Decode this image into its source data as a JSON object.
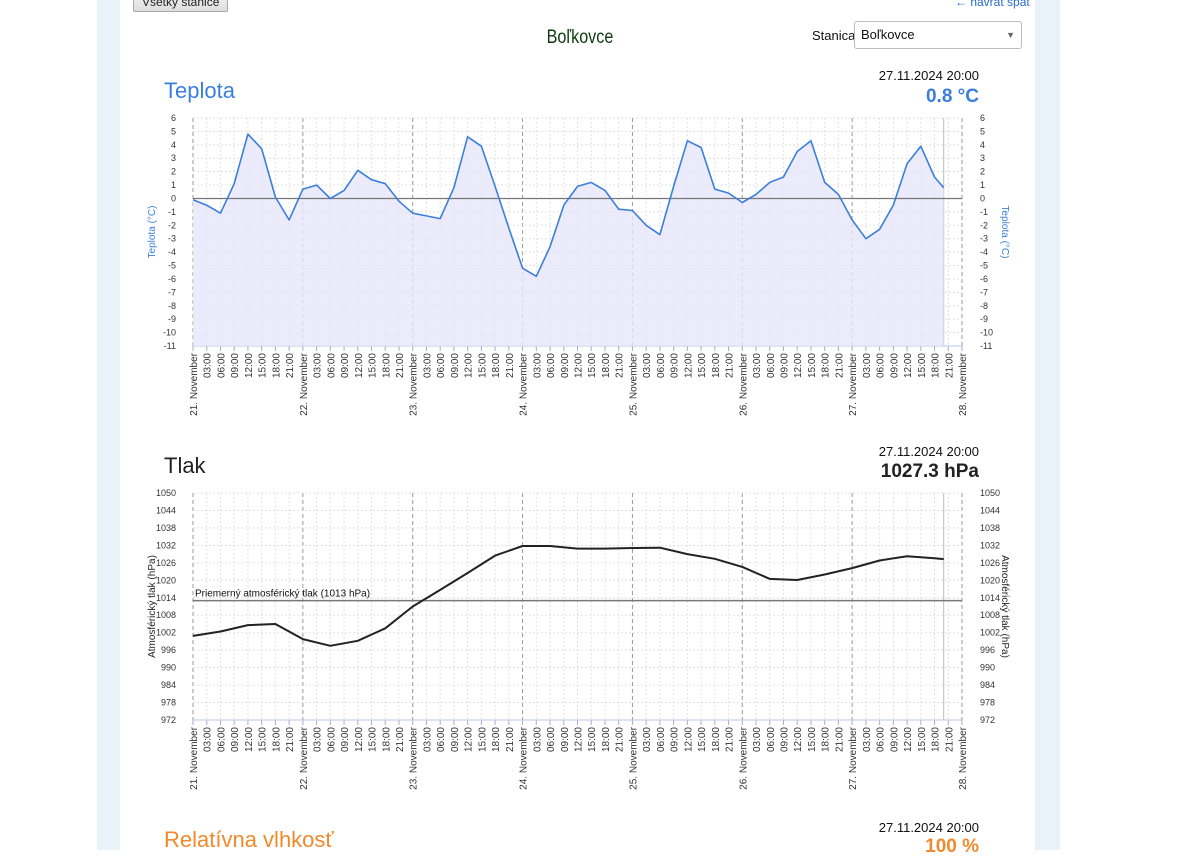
{
  "nav": {
    "all_stations": "Všetky stanice",
    "back": "← návrat späť"
  },
  "station": {
    "title": "Boľkovce",
    "label": "Stanica:",
    "selected": "Boľkovce"
  },
  "colors": {
    "temp": "#3b7fdc",
    "pressure": "#222222",
    "humidity": "#f08a2c",
    "temp_fill": "#e6e6fa"
  },
  "temperature": {
    "title": "Teplota",
    "date": "27.11.2024 20:00",
    "value": "0.8 °C",
    "axis_label": "Teplota (°C)"
  },
  "pressure": {
    "title": "Tlak",
    "date": "27.11.2024 20:00",
    "value": "1027.3 hPa",
    "axis_label": "Atmosférický tlak (hPa)",
    "reference_label": "Priemerný atmosférický tlak (1013 hPa)",
    "reference_value": 1013
  },
  "humidity": {
    "title": "Relatívna vlhkosť",
    "date": "27.11.2024 20:00",
    "value": "100 %"
  },
  "x_axis": {
    "day_labels": [
      "21. November",
      "22. November",
      "23. November",
      "24. November",
      "25. November",
      "26. November",
      "27. November",
      "28. November"
    ],
    "hour_labels": [
      "03:00",
      "06:00",
      "09:00",
      "12:00",
      "15:00",
      "18:00",
      "21:00"
    ]
  },
  "chart_data": [
    {
      "type": "area",
      "ylabel": "Teplota (°C)",
      "ylim": [
        -11,
        6
      ],
      "yticks_step": 1,
      "xlim": [
        "2024-11-21T00:00",
        "2024-11-28T00:00"
      ],
      "grid": true,
      "x": [
        "2024-11-21T00:00",
        "2024-11-21T03:00",
        "2024-11-21T06:00",
        "2024-11-21T09:00",
        "2024-11-21T12:00",
        "2024-11-21T15:00",
        "2024-11-21T18:00",
        "2024-11-21T21:00",
        "2024-11-22T00:00",
        "2024-11-22T03:00",
        "2024-11-22T06:00",
        "2024-11-22T09:00",
        "2024-11-22T12:00",
        "2024-11-22T15:00",
        "2024-11-22T18:00",
        "2024-11-22T21:00",
        "2024-11-23T00:00",
        "2024-11-23T03:00",
        "2024-11-23T06:00",
        "2024-11-23T09:00",
        "2024-11-23T12:00",
        "2024-11-23T15:00",
        "2024-11-23T18:00",
        "2024-11-23T21:00",
        "2024-11-24T00:00",
        "2024-11-24T03:00",
        "2024-11-24T06:00",
        "2024-11-24T09:00",
        "2024-11-24T12:00",
        "2024-11-24T15:00",
        "2024-11-24T18:00",
        "2024-11-24T21:00",
        "2024-11-25T00:00",
        "2024-11-25T03:00",
        "2024-11-25T06:00",
        "2024-11-25T09:00",
        "2024-11-25T12:00",
        "2024-11-25T15:00",
        "2024-11-25T18:00",
        "2024-11-25T21:00",
        "2024-11-26T00:00",
        "2024-11-26T03:00",
        "2024-11-26T06:00",
        "2024-11-26T09:00",
        "2024-11-26T12:00",
        "2024-11-26T15:00",
        "2024-11-26T18:00",
        "2024-11-26T21:00",
        "2024-11-27T00:00",
        "2024-11-27T03:00",
        "2024-11-27T06:00",
        "2024-11-27T09:00",
        "2024-11-27T12:00",
        "2024-11-27T15:00",
        "2024-11-27T18:00",
        "2024-11-27T20:00"
      ],
      "y": [
        -0.1,
        -0.5,
        -1.1,
        1.1,
        4.8,
        3.7,
        0.1,
        -1.6,
        0.7,
        1.0,
        0.0,
        0.6,
        2.1,
        1.4,
        1.1,
        -0.2,
        -1.1,
        -1.3,
        -1.5,
        0.8,
        4.6,
        3.9,
        0.9,
        -2.2,
        -5.2,
        -5.8,
        -3.6,
        -0.5,
        0.9,
        1.2,
        0.6,
        -0.8,
        -0.9,
        -2.0,
        -2.7,
        0.9,
        4.3,
        3.8,
        0.7,
        0.4,
        -0.3,
        0.3,
        1.2,
        1.6,
        3.5,
        4.3,
        1.2,
        0.3,
        -1.6,
        -3.0,
        -2.3,
        -0.5,
        2.6,
        3.9,
        1.6,
        0.8
      ]
    },
    {
      "type": "line",
      "ylabel": "Atmosférický tlak (hPa)",
      "ylim": [
        972,
        1050
      ],
      "yticks_step": 6,
      "xlim": [
        "2024-11-21T00:00",
        "2024-11-28T00:00"
      ],
      "grid": true,
      "x": [
        "2024-11-21T00:00",
        "2024-11-21T06:00",
        "2024-11-21T12:00",
        "2024-11-21T18:00",
        "2024-11-22T00:00",
        "2024-11-22T06:00",
        "2024-11-22T12:00",
        "2024-11-22T18:00",
        "2024-11-23T00:00",
        "2024-11-23T06:00",
        "2024-11-23T12:00",
        "2024-11-23T18:00",
        "2024-11-24T00:00",
        "2024-11-24T06:00",
        "2024-11-24T12:00",
        "2024-11-24T18:00",
        "2024-11-25T00:00",
        "2024-11-25T06:00",
        "2024-11-25T12:00",
        "2024-11-25T18:00",
        "2024-11-26T00:00",
        "2024-11-26T06:00",
        "2024-11-26T12:00",
        "2024-11-26T18:00",
        "2024-11-27T00:00",
        "2024-11-27T06:00",
        "2024-11-27T12:00",
        "2024-11-27T18:00",
        "2024-11-27T20:00"
      ],
      "y": [
        1000.9,
        1002.4,
        1004.6,
        1005.0,
        999.8,
        997.5,
        999.2,
        1003.5,
        1011.0,
        1016.7,
        1022.5,
        1028.5,
        1031.8,
        1031.8,
        1030.9,
        1030.9,
        1031.1,
        1031.2,
        1029.0,
        1027.4,
        1024.6,
        1020.5,
        1020.1,
        1022.0,
        1024.2,
        1026.8,
        1028.3,
        1027.6,
        1027.3
      ]
    }
  ]
}
